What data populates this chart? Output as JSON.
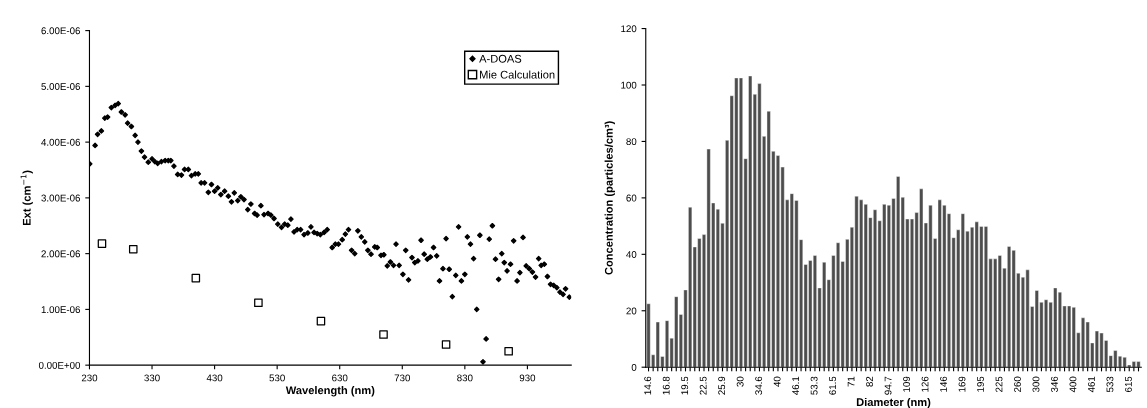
{
  "chart_data": [
    {
      "type": "scatter",
      "xlabel": "Wavelength (nm)",
      "ylabel": "Ext (cm$^{−1}$)",
      "legend": "top right",
      "xlim": [
        230,
        1000
      ],
      "xticks": [
        230,
        330,
        430,
        530,
        630,
        730,
        830,
        930
      ],
      "ylim": [
        0,
        6e-06
      ],
      "yticks": [
        {
          "value": 0,
          "label": "0.00E+00"
        },
        {
          "value": 1e-06,
          "label": "1.00E-06"
        },
        {
          "value": 2e-06,
          "label": "2.00E-06"
        },
        {
          "value": 3e-06,
          "label": "3.00E-06"
        },
        {
          "value": 4e-06,
          "label": "4.00E-06"
        },
        {
          "value": 5e-06,
          "label": "5.00E-06"
        },
        {
          "value": 6e-06,
          "label": "6.00E-06"
        }
      ],
      "series": [
        {
          "name": "A-DOAS",
          "color": "#000000",
          "marker": "diamond",
          "x": [
            230.5,
            239,
            243,
            249,
            254.5,
            259,
            265,
            271,
            276,
            281,
            287,
            291,
            297,
            303,
            307.5,
            313,
            318,
            324,
            330,
            334.5,
            339,
            345,
            351,
            356,
            360,
            365,
            371,
            377,
            382,
            388,
            393,
            399,
            404,
            408.5,
            414,
            420,
            425,
            430,
            435,
            440,
            446,
            452,
            457,
            461.5,
            467,
            472,
            477,
            483,
            488,
            494,
            498,
            504,
            509,
            515.5,
            520,
            525,
            531,
            537,
            542,
            547,
            552,
            557,
            562,
            567.5,
            573,
            579,
            584,
            589,
            594,
            599,
            605,
            610,
            618,
            623,
            628,
            634,
            639,
            644,
            649,
            654,
            659,
            664.5,
            670,
            675,
            680,
            686,
            690,
            696,
            700.5,
            706,
            711,
            716,
            720,
            725,
            731,
            735.5,
            740,
            745.5,
            750,
            755,
            760,
            765,
            770,
            775,
            780,
            785,
            789.5,
            795,
            800,
            805,
            810,
            815.5,
            820,
            824.5,
            830,
            834,
            839,
            844,
            849,
            854,
            859,
            864,
            869,
            874,
            879,
            884,
            889,
            893,
            897.5,
            903,
            908,
            913.5,
            918,
            923,
            928,
            933,
            938,
            943,
            948,
            952,
            957,
            962,
            967,
            972,
            977,
            982,
            987,
            991,
            997
          ],
          "values": [
            3.61e-06,
            3.94e-06,
            4.14e-06,
            4.2e-06,
            4.43e-06,
            4.45e-06,
            4.62e-06,
            4.66e-06,
            4.69e-06,
            4.54e-06,
            4.49e-06,
            4.34e-06,
            4.28e-06,
            4.12e-06,
            4e-06,
            3.84e-06,
            3.73e-06,
            3.64e-06,
            3.7e-06,
            3.65e-06,
            3.62e-06,
            3.65e-06,
            3.67e-06,
            3.67e-06,
            3.67e-06,
            3.57e-06,
            3.42e-06,
            3.41e-06,
            3.51e-06,
            3.51e-06,
            3.4e-06,
            3.43e-06,
            3.43e-06,
            3.27e-06,
            3.27e-06,
            3.1e-06,
            3.24e-06,
            3.12e-06,
            3.18e-06,
            3.06e-06,
            3.12e-06,
            3.03e-06,
            2.93e-06,
            3.09e-06,
            2.95e-06,
            3.02e-06,
            2.97e-06,
            2.79e-06,
            2.89e-06,
            2.72e-06,
            2.69e-06,
            2.86e-06,
            2.7e-06,
            2.72e-06,
            2.69e-06,
            2.63e-06,
            2.53e-06,
            2.47e-06,
            2.53e-06,
            2.51e-06,
            2.62e-06,
            2.39e-06,
            2.43e-06,
            2.43e-06,
            2.34e-06,
            2.37e-06,
            2.48e-06,
            2.38e-06,
            2.36e-06,
            2.34e-06,
            2.38e-06,
            2.43e-06,
            2.11e-06,
            2.17e-06,
            2.17e-06,
            2.25e-06,
            2.35e-06,
            2.43e-06,
            2.06e-06,
            2e-06,
            2.41e-06,
            2.3e-06,
            2.21e-06,
            2.06e-06,
            1.99e-06,
            2.12e-06,
            2.11e-06,
            1.97e-06,
            1.98e-06,
            1.78e-06,
            1.85e-06,
            1.79e-06,
            2.17e-06,
            1.79e-06,
            1.63e-06,
            2.06e-06,
            1.53e-06,
            1.93e-06,
            1.84e-06,
            1.87e-06,
            2.24e-06,
            1.99e-06,
            1.9e-06,
            1.94e-06,
            2.11e-06,
            1.96e-06,
            1.51e-06,
            1.73e-06,
            2.27e-06,
            1.72e-06,
            1.23e-06,
            1.61e-06,
            2.48e-06,
            1.51e-06,
            1.63e-06,
            2.3e-06,
            2.17e-06,
            1.91e-06,
            1e-06,
            2.33e-06,
            6e-08,
            4.7e-07,
            2.26e-06,
            2.5e-06,
            1.9e-06,
            1.54e-06,
            2e-06,
            1.84e-06,
            1.69e-06,
            1.81e-06,
            2.23e-06,
            1.51e-06,
            1.66e-06,
            2.29e-06,
            1.78e-06,
            1.73e-06,
            1.67e-06,
            1.58e-06,
            1.91e-06,
            1.79e-06,
            1.81e-06,
            1.59e-06,
            1.45e-06,
            1.43e-06,
            1.39e-06,
            1.31e-06,
            1.27e-06,
            1.37e-06,
            1.22e-06
          ]
        },
        {
          "name": "Mie Calculation",
          "color": "#000000",
          "marker": "square",
          "x": [
            250,
            300,
            400,
            500,
            600,
            700,
            800,
            900
          ],
          "values": [
            2.18e-06,
            2.08e-06,
            1.56e-06,
            1.12e-06,
            7.9e-07,
            5.5e-07,
            3.7e-07,
            2.5e-07
          ]
        }
      ]
    },
    {
      "type": "bar",
      "xlabel": "Diameter (nm)",
      "ylabel": "Concentration (particles/cm³)",
      "color": "#4d4d4d",
      "ylim": [
        0,
        120
      ],
      "yticks": [
        0,
        20,
        40,
        60,
        80,
        100,
        120
      ],
      "categories": [
        "14.6",
        null,
        null,
        null,
        "16.8",
        null,
        null,
        null,
        "19.5",
        null,
        null,
        null,
        "22.5",
        null,
        null,
        null,
        "25.9",
        null,
        null,
        null,
        "30",
        null,
        null,
        null,
        "34.6",
        null,
        null,
        null,
        "40",
        null,
        null,
        null,
        "46.1",
        null,
        null,
        null,
        "53.3",
        null,
        null,
        null,
        "61.5",
        null,
        null,
        null,
        "71",
        null,
        null,
        null,
        "82",
        null,
        null,
        null,
        "94.7",
        null,
        null,
        null,
        "109",
        null,
        null,
        null,
        "126",
        null,
        null,
        null,
        "146",
        null,
        null,
        null,
        "169",
        null,
        null,
        null,
        "195",
        null,
        null,
        null,
        "225",
        null,
        null,
        null,
        "260",
        null,
        null,
        null,
        "300",
        null,
        null,
        null,
        "346",
        null,
        null,
        null,
        "400",
        null,
        null,
        null,
        "461",
        null,
        null,
        null,
        "533",
        null,
        null,
        null,
        "615",
        null,
        null
      ],
      "values": [
        22.5,
        4.4,
        16,
        3.8,
        16.5,
        10.3,
        25,
        18.7,
        27.4,
        56.7,
        42.6,
        45.6,
        47,
        77.3,
        58.2,
        56,
        51,
        80.4,
        96.2,
        102.5,
        102.5,
        73.9,
        103.2,
        96.7,
        100.5,
        81.8,
        90.7,
        76.5,
        75,
        70.9,
        59.3,
        61.5,
        59.1,
        45.2,
        36.4,
        37.8,
        39.6,
        28.1,
        37.2,
        31,
        39.6,
        44.1,
        37.5,
        45.3,
        49.6,
        60.6,
        59.3,
        57.7,
        53,
        55.8,
        51.9,
        57.7,
        57.4,
        59.8,
        67.6,
        60.2,
        52.5,
        52.5,
        54.8,
        63.2,
        51.1,
        57.4,
        45.6,
        59.3,
        57.4,
        54.4,
        45.9,
        48.7,
        54.4,
        48.2,
        49.6,
        51.5,
        49.9,
        49.9,
        38.4,
        38.4,
        39.6,
        35.1,
        42.8,
        41.4,
        33.3,
        31.9,
        34.5,
        21.5,
        27.2,
        23,
        23.9,
        23,
        28.1,
        26.6,
        21.7,
        21.7,
        21.2,
        12.2,
        17.5,
        16,
        8.6,
        12.8,
        12.1,
        9.5,
        4.1,
        5.9,
        3.9,
        3.5,
        0.8,
        2,
        2
      ]
    }
  ]
}
